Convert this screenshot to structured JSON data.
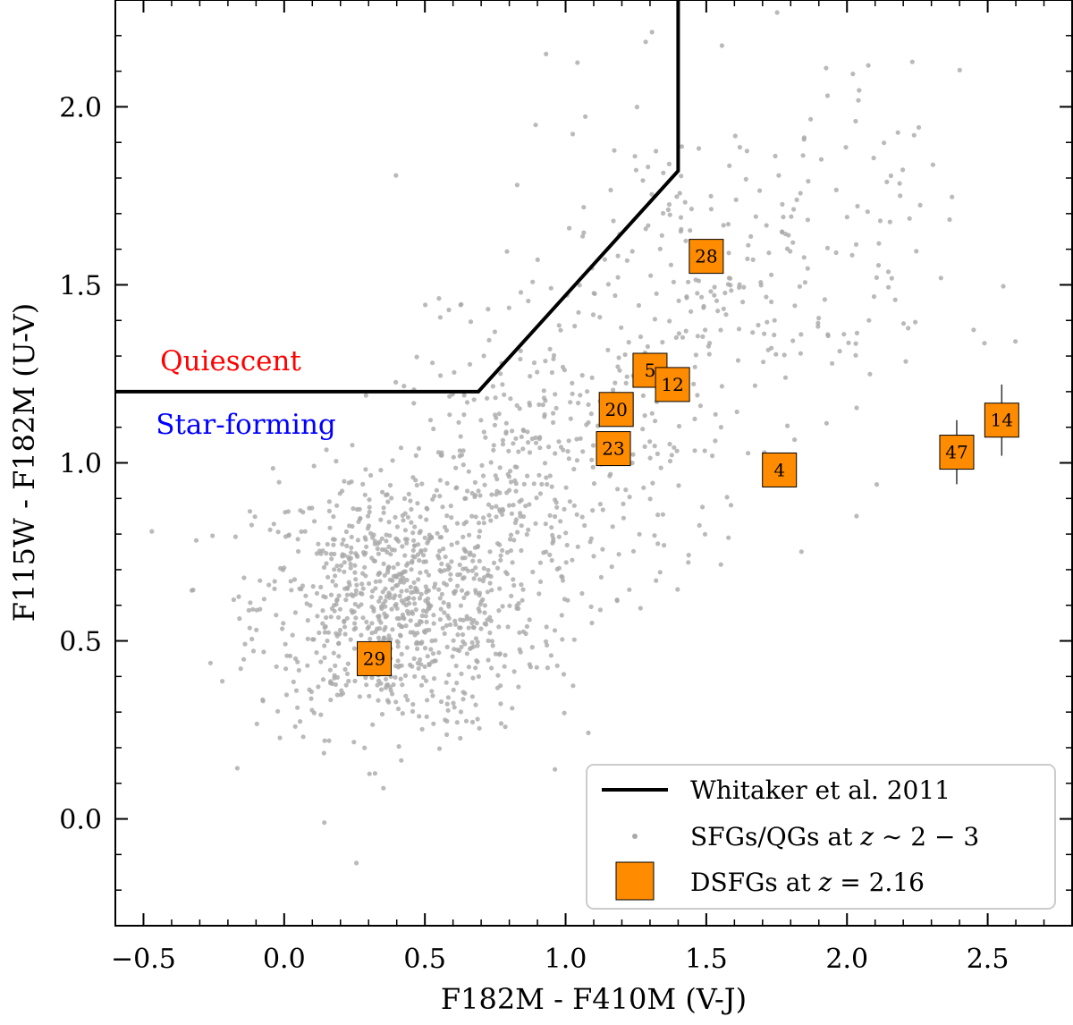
{
  "chart_data": {
    "type": "scatter",
    "xlabel": "F182M - F410M (V-J)",
    "ylabel": "F115W - F182M (U-V)",
    "xlim": [
      -0.6,
      2.8
    ],
    "ylim": [
      -0.3,
      2.3
    ],
    "xticks": [
      -0.5,
      0.0,
      0.5,
      1.0,
      1.5,
      2.0,
      2.5
    ],
    "yticks": [
      0.0,
      0.5,
      1.0,
      1.5,
      2.0
    ],
    "xtick_labels": [
      "−0.5",
      "0.0",
      "0.5",
      "1.0",
      "1.5",
      "2.0",
      "2.5"
    ],
    "ytick_labels": [
      "0.0",
      "0.5",
      "1.0",
      "1.5",
      "2.0"
    ],
    "region_labels": {
      "quiescent": {
        "text": "Quiescent",
        "color": "#ff0000"
      },
      "star_forming": {
        "text": "Star-forming",
        "color": "#0000ff"
      }
    },
    "whitaker_line": {
      "x": [
        -0.6,
        0.69,
        1.4,
        1.4
      ],
      "y": [
        1.2,
        1.2,
        1.82,
        2.3
      ]
    },
    "dsfgs": [
      {
        "id": "28",
        "x": 1.5,
        "y": 1.58,
        "yerr": 0
      },
      {
        "id": "5",
        "x": 1.3,
        "y": 1.26,
        "yerr": 0
      },
      {
        "id": "12",
        "x": 1.38,
        "y": 1.22,
        "yerr": 0
      },
      {
        "id": "20",
        "x": 1.18,
        "y": 1.15,
        "yerr": 0
      },
      {
        "id": "23",
        "x": 1.17,
        "y": 1.04,
        "yerr": 0
      },
      {
        "id": "4",
        "x": 1.76,
        "y": 0.98,
        "yerr": 0
      },
      {
        "id": "47",
        "x": 2.39,
        "y": 1.03,
        "yerr": 0.09
      },
      {
        "id": "14",
        "x": 2.55,
        "y": 1.12,
        "yerr": 0.1
      },
      {
        "id": "29",
        "x": 0.32,
        "y": 0.45,
        "yerr": 0
      }
    ],
    "background_population": {
      "description": "SFGs/QGs at z~2-3",
      "color": "#a9a9a9",
      "clusters": [
        {
          "n": 900,
          "mean_x": 0.4,
          "mean_y": 0.6,
          "sd_x": 0.25,
          "sd_y": 0.18
        },
        {
          "n": 350,
          "mean_x": 0.9,
          "mean_y": 0.95,
          "sd_x": 0.25,
          "sd_y": 0.22
        },
        {
          "n": 260,
          "mean_x": 1.45,
          "mean_y": 1.45,
          "sd_x": 0.35,
          "sd_y": 0.28
        },
        {
          "n": 70,
          "mean_x": 1.9,
          "mean_y": 1.6,
          "sd_x": 0.25,
          "sd_y": 0.25
        }
      ]
    },
    "legend": {
      "position": "lower-right",
      "entries": [
        {
          "label_main": "Whitaker et al. 2011",
          "label_math": "",
          "label_tail": "",
          "marker": "line",
          "color": "#000000"
        },
        {
          "label_main": "SFGs/QGs at ",
          "label_math": "z",
          "label_tail": " ∼ 2 − 3",
          "marker": "dot",
          "color": "#a9a9a9"
        },
        {
          "label_main": "DSFGs at ",
          "label_math": "z",
          "label_tail": " = 2.16",
          "marker": "square",
          "color": "#ff8c00"
        }
      ]
    }
  }
}
